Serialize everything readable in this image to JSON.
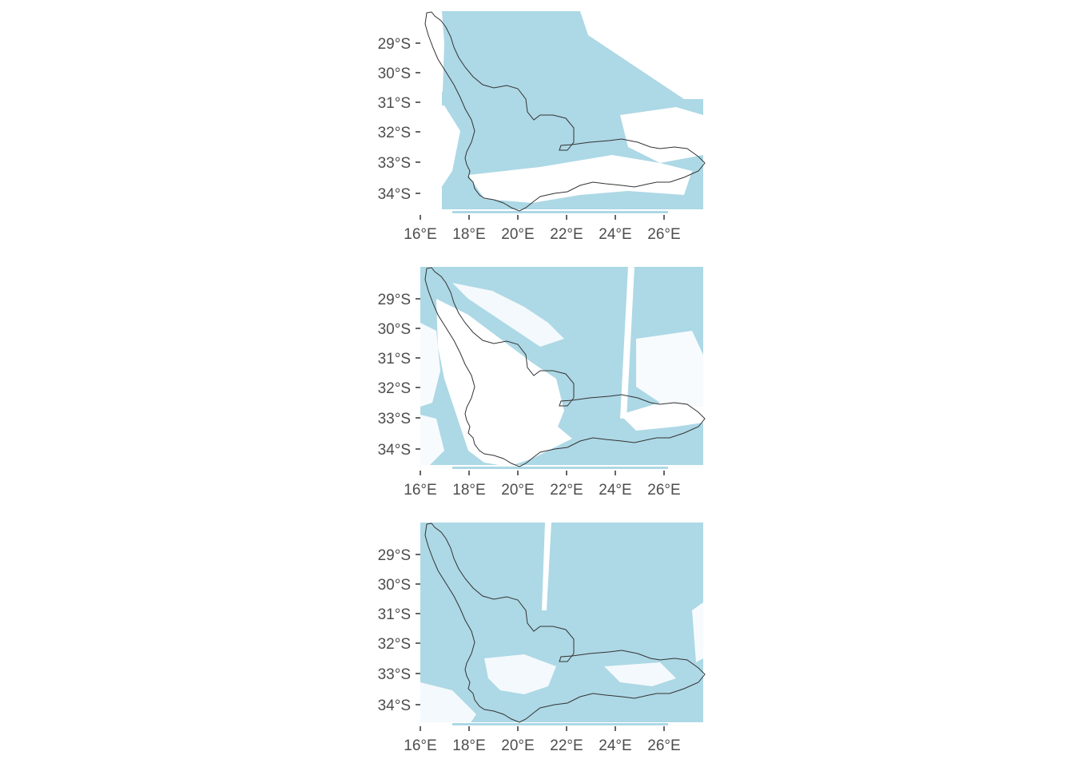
{
  "colors": {
    "fill": "#add8e6",
    "background": "#ffffff",
    "outline": "#333333",
    "axis_text": "#4d4d4d"
  },
  "axes": {
    "lon_ticks": [
      "16°E",
      "18°E",
      "20°E",
      "22°E",
      "24°E",
      "26°E"
    ],
    "lat_ticks": [
      "29°S",
      "30°S",
      "31°S",
      "32°S",
      "33°S",
      "34°S"
    ]
  },
  "maps": [
    {
      "id": "map-1",
      "note_fill": "light blue cloud mask with clear gaps in south and east"
    },
    {
      "id": "map-2",
      "note_fill": "light blue cloud mask, clear western interior, stripe artefact near 24.5°E"
    },
    {
      "id": "map-3",
      "note_fill": "mostly light blue, stripe artefact near 21.3°E"
    }
  ]
}
